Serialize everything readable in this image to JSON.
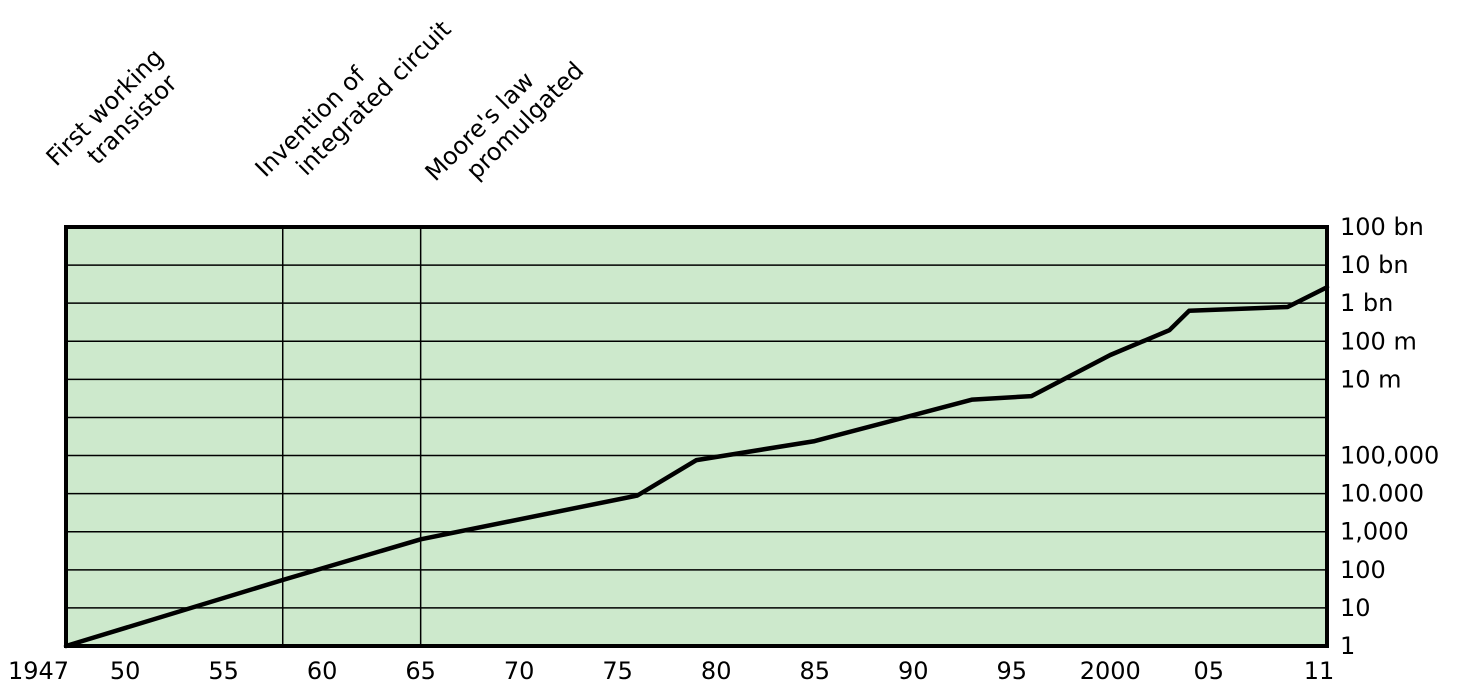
{
  "chart_data": {
    "type": "line",
    "title": "",
    "xlabel": "",
    "ylabel": "",
    "y_scale": "log",
    "xlim": [
      1947,
      2011
    ],
    "ylim": [
      1,
      100000000000
    ],
    "grid": {
      "horizontal": true,
      "vertical": false
    },
    "colors": {
      "plot_background": "#cde9cc",
      "line": "#000000",
      "grid": "#000000",
      "border": "#000000"
    },
    "x_ticks": [
      {
        "value": 1947,
        "label": "1947"
      },
      {
        "value": 1950,
        "label": "50"
      },
      {
        "value": 1955,
        "label": "55"
      },
      {
        "value": 1960,
        "label": "60"
      },
      {
        "value": 1965,
        "label": "65"
      },
      {
        "value": 1970,
        "label": "70"
      },
      {
        "value": 1975,
        "label": "75"
      },
      {
        "value": 1980,
        "label": "80"
      },
      {
        "value": 1985,
        "label": "85"
      },
      {
        "value": 1990,
        "label": "90"
      },
      {
        "value": 1995,
        "label": "95"
      },
      {
        "value": 2000,
        "label": "2000"
      },
      {
        "value": 2005,
        "label": "05"
      },
      {
        "value": 2011,
        "label": "11"
      }
    ],
    "y_ticks": [
      {
        "value": 1,
        "label": "1"
      },
      {
        "value": 10,
        "label": "10"
      },
      {
        "value": 100,
        "label": "100"
      },
      {
        "value": 1000,
        "label": "1,000"
      },
      {
        "value": 10000,
        "label": "10.000"
      },
      {
        "value": 100000,
        "label": "100,000"
      },
      {
        "value": 10000000,
        "label": "10 m"
      },
      {
        "value": 100000000,
        "label": "100 m"
      },
      {
        "value": 1000000000,
        "label": "1 bn"
      },
      {
        "value": 10000000000,
        "label": "10 bn"
      },
      {
        "value": 100000000000,
        "label": "100 bn"
      }
    ],
    "annotations": [
      {
        "x": 1947,
        "lines": [
          "First working",
          "transistor"
        ],
        "vline": false
      },
      {
        "x": 1958,
        "lines": [
          "Invention of",
          "integrated circuit"
        ],
        "vline": true
      },
      {
        "x": 1965,
        "lines": [
          "Moore's law",
          "promulgated"
        ],
        "vline": true
      }
    ],
    "series": [
      {
        "x": [
          1947,
          1958,
          1965,
          1976,
          1979,
          1985,
          1993,
          1996,
          2000,
          2003,
          2004,
          2007,
          2009,
          2011
        ],
        "y": [
          1,
          54,
          631,
          8913,
          75857,
          239883,
          2951209,
          3630781,
          43651583,
          194984460,
          630957344,
          724435960,
          794328235,
          2630267992
        ]
      }
    ]
  }
}
